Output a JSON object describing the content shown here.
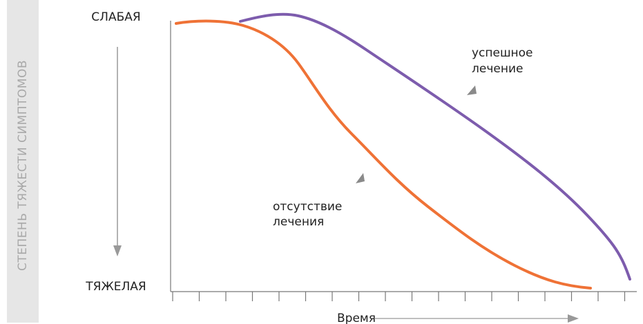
{
  "axis_title": "СТЕПЕНЬ ТЯЖЕСТИ СИМПТОМОВ",
  "top_label": "СЛАБАЯ",
  "bottom_label": "ТЯЖЕЛАЯ",
  "x_label": "Время",
  "curves": [
    {
      "label_lines": [
        "успешное",
        "лечение"
      ]
    },
    {
      "label_lines": [
        "отсутствие",
        "лечения"
      ]
    }
  ]
}
